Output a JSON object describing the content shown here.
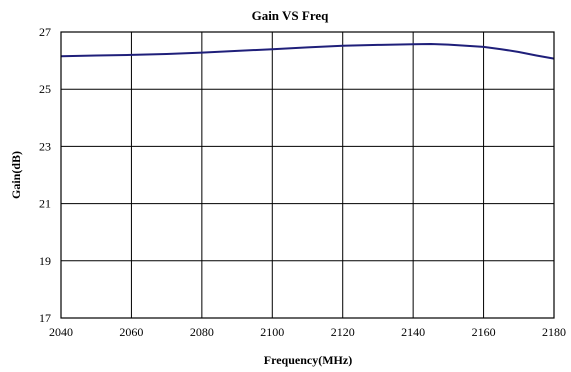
{
  "chart_data": {
    "type": "line",
    "title": "Gain VS Freq",
    "xlabel": "Frequency(MHz)",
    "ylabel": "Gain(dB)",
    "xlim": [
      2040,
      2180
    ],
    "ylim": [
      17,
      27
    ],
    "xticks": [
      2040,
      2060,
      2080,
      2100,
      2120,
      2140,
      2160,
      2180
    ],
    "yticks": [
      17,
      19,
      21,
      23,
      25,
      27
    ],
    "grid": true,
    "legend": "none",
    "series": [
      {
        "color": "#1f1f7a",
        "x": [
          2040,
          2050,
          2060,
          2070,
          2080,
          2090,
          2100,
          2110,
          2120,
          2130,
          2140,
          2145,
          2150,
          2160,
          2165,
          2170,
          2175,
          2180
        ],
        "y": [
          26.15,
          26.18,
          26.2,
          26.23,
          26.28,
          26.34,
          26.4,
          26.46,
          26.52,
          26.55,
          26.57,
          26.58,
          26.56,
          26.48,
          26.4,
          26.3,
          26.18,
          26.07
        ]
      }
    ]
  }
}
